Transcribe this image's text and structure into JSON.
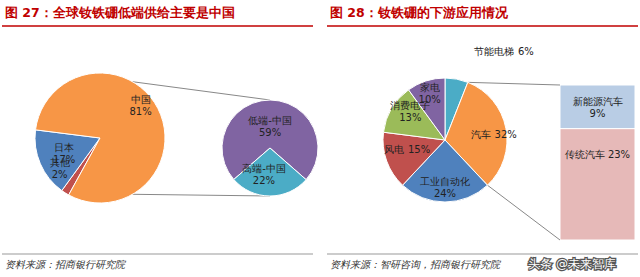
{
  "chart_data": [
    {
      "type": "pie",
      "title": "图 27：全球钕铁硼低端供给主要是中国",
      "categories": [
        "其他",
        "日本",
        "中国"
      ],
      "values": [
        2,
        17,
        81
      ],
      "value_labels": [
        "2%",
        "17%",
        "81%"
      ],
      "colors": [
        "#C0504D",
        "#4F81BD",
        "#F79646"
      ],
      "data_labels": true,
      "source": "资料来源：招商银行研究院"
    },
    {
      "type": "pie",
      "categories": [
        "低端-中国",
        "高端-中国"
      ],
      "values": [
        59,
        22
      ],
      "value_labels": [
        "59%",
        "22%"
      ],
      "colors": [
        "#8064A2",
        "#4BACC6"
      ],
      "data_labels": true
    },
    {
      "type": "pie",
      "title": "图 28：钕铁硼的下游应用情况",
      "categories": [
        "节能电梯",
        "汽车",
        "工业自动化",
        "风电",
        "消费电子",
        "家电"
      ],
      "values": [
        6,
        32,
        24,
        15,
        13,
        10
      ],
      "value_labels": [
        "6%",
        "32%",
        "24%",
        "15%",
        "13%",
        "10%"
      ],
      "colors": [
        "#4BACC6",
        "#F79646",
        "#4F81BD",
        "#C0504D",
        "#9BBB59",
        "#8064A2"
      ],
      "data_labels": true,
      "source": "资料来源：智研咨询，招商银行研究院"
    },
    {
      "type": "bar",
      "stacked": true,
      "categories": [
        null
      ],
      "series": [
        {
          "name": "传统汽车",
          "color": "#E6B9B8",
          "values": [
            23
          ],
          "value_labels": [
            "23%"
          ]
        },
        {
          "name": "新能源汽车",
          "color": "#B9CDE5",
          "values": [
            9
          ],
          "value_labels": [
            "9%"
          ]
        }
      ],
      "ylim": [
        0,
        32
      ],
      "tick_labels": false,
      "data_labels": true
    }
  ],
  "watermark": "头条 @未来智库"
}
